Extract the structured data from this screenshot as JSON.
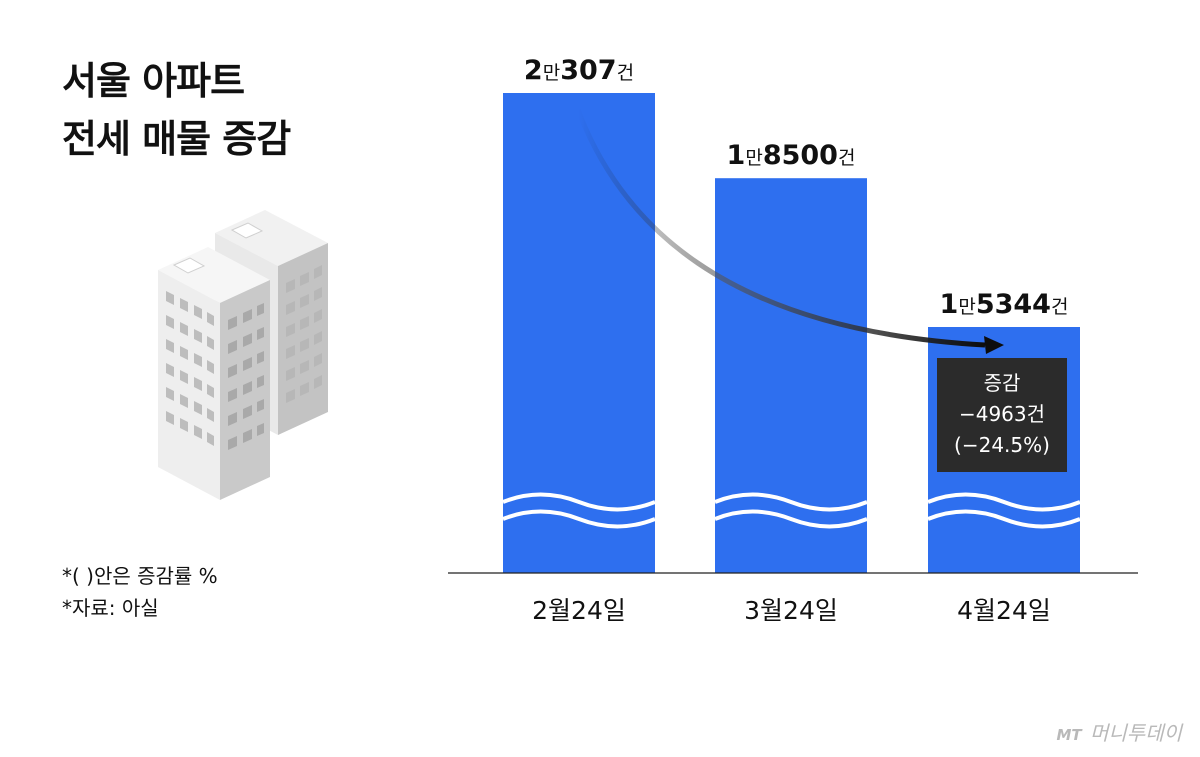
{
  "title": "서울 아파트\n전세 매물 증감",
  "notes": [
    "*( )안은 증감률 %",
    "*자료: 아실"
  ],
  "watermark": {
    "logo": "MT",
    "brand": "머니투데이"
  },
  "colors": {
    "bar": "#2e6fef",
    "callout_bg": "#2b2b2b",
    "wave": "#ffffff",
    "arrow": "#111111"
  },
  "icons": [
    "apartment-building-icon"
  ],
  "chart_data": {
    "type": "bar",
    "title": "서울 아파트 전세 매물 증감",
    "categories": [
      "2월24일",
      "3월24일",
      "4월24일"
    ],
    "values": [
      20307,
      18500,
      15344
    ],
    "value_labels": [
      {
        "big1": "2",
        "small1": "만",
        "big2": "307",
        "small2": "건"
      },
      {
        "big1": "1",
        "small1": "만",
        "big2": "8500",
        "small2": "건"
      },
      {
        "big1": "1",
        "small1": "만",
        "big2": "5344",
        "small2": "건"
      }
    ],
    "axis_break": true,
    "grid": false,
    "annotation": {
      "lines": [
        "증감",
        "−4963건",
        "(−24.5%)"
      ]
    }
  }
}
